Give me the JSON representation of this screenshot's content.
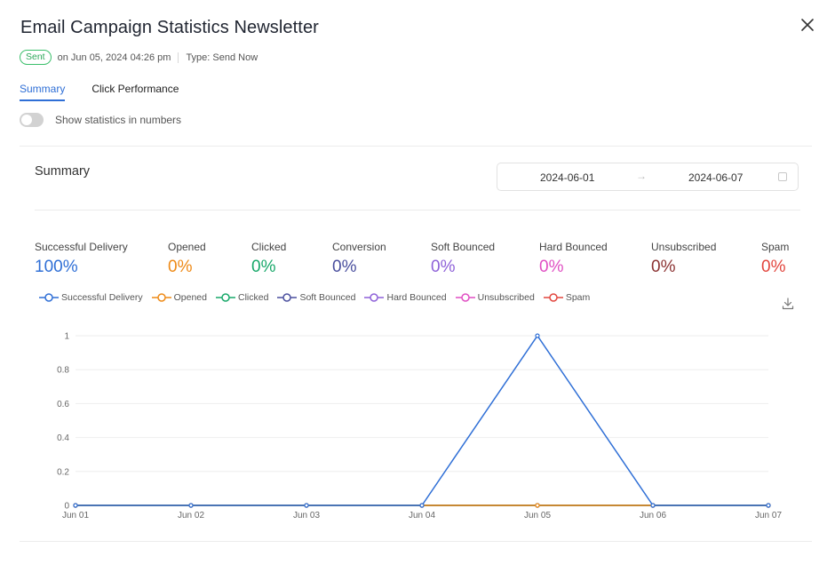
{
  "header": {
    "title": "Email Campaign Statistics Newsletter",
    "status": "Sent",
    "sent_on": "on Jun 05, 2024 04:26 pm",
    "type": "Type: Send Now"
  },
  "tabs": [
    {
      "label": "Summary",
      "active": true
    },
    {
      "label": "Click Performance",
      "active": false
    }
  ],
  "toggle": {
    "label": "Show statistics in numbers",
    "on": false
  },
  "summary": {
    "title": "Summary",
    "date_from": "2024-06-01",
    "date_arrow": "→",
    "date_to": "2024-06-07"
  },
  "stats": [
    {
      "label": "Successful Delivery",
      "value": "100%",
      "color": "#2f6fd6"
    },
    {
      "label": "Opened",
      "value": "0%",
      "color": "#ee8a17"
    },
    {
      "label": "Clicked",
      "value": "0%",
      "color": "#18a86a"
    },
    {
      "label": "Conversion",
      "value": "0%",
      "color": "#4a4f9e"
    },
    {
      "label": "Soft Bounced",
      "value": "0%",
      "color": "#8e61d8"
    },
    {
      "label": "Hard Bounced",
      "value": "0%",
      "color": "#e04fc3"
    },
    {
      "label": "Unsubscribed",
      "value": "0%",
      "color": "#8b3232"
    },
    {
      "label": "Spam",
      "value": "0%",
      "color": "#e2463e"
    }
  ],
  "legend": [
    {
      "label": "Successful Delivery",
      "color": "#2f6fd6"
    },
    {
      "label": "Opened",
      "color": "#ee8a17"
    },
    {
      "label": "Clicked",
      "color": "#18a86a"
    },
    {
      "label": "Soft Bounced",
      "color": "#4a4f9e"
    },
    {
      "label": "Hard Bounced",
      "color": "#8e61d8"
    },
    {
      "label": "Unsubscribed",
      "color": "#e04fc3"
    },
    {
      "label": "Spam",
      "color": "#e2463e"
    }
  ],
  "chart_data": {
    "type": "line",
    "categories": [
      "Jun 01",
      "Jun 02",
      "Jun 03",
      "Jun 04",
      "Jun 05",
      "Jun 06",
      "Jun 07"
    ],
    "y_ticks": [
      "0",
      "0.2",
      "0.4",
      "0.6",
      "0.8",
      "1"
    ],
    "ylim": [
      0,
      1
    ],
    "grid": true,
    "series": [
      {
        "name": "Successful Delivery",
        "color": "#2f6fd6",
        "values": [
          0,
          0,
          0,
          0,
          1,
          0,
          0
        ]
      },
      {
        "name": "Opened",
        "color": "#ee8a17",
        "values": [
          0,
          0,
          0,
          0,
          0,
          0,
          0
        ]
      },
      {
        "name": "Clicked",
        "color": "#18a86a",
        "values": [
          0,
          0,
          0,
          0,
          0,
          0,
          0
        ]
      },
      {
        "name": "Soft Bounced",
        "color": "#4a4f9e",
        "values": [
          0,
          0,
          0,
          0,
          0,
          0,
          0
        ]
      },
      {
        "name": "Hard Bounced",
        "color": "#8e61d8",
        "values": [
          0,
          0,
          0,
          0,
          0,
          0,
          0
        ]
      },
      {
        "name": "Unsubscribed",
        "color": "#e04fc3",
        "values": [
          0,
          0,
          0,
          0,
          0,
          0,
          0
        ]
      },
      {
        "name": "Spam",
        "color": "#e2463e",
        "values": [
          0,
          0,
          0,
          0,
          0,
          0,
          0
        ]
      }
    ]
  }
}
